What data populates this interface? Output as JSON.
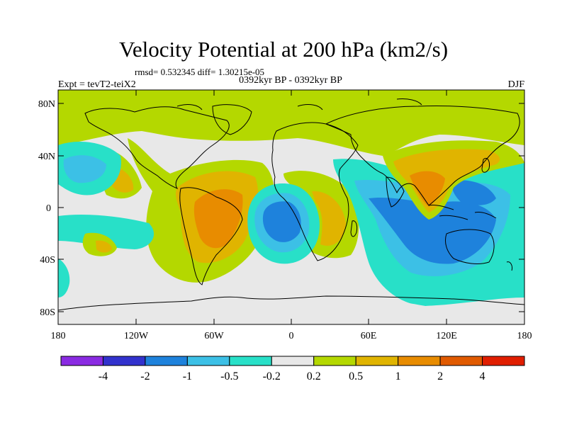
{
  "title": "Velocity Potential at 200 hPa (km2/s)",
  "stats_line": "rmsd= 0.532345  diff= 1.30215e-05",
  "left_label": "Expt = tevT2-teiX2",
  "center_label": "0392kyr BP - 0392kyr BP",
  "right_label": "DJF",
  "lat_ticks": [
    "80N",
    "40N",
    "0",
    "40S",
    "80S"
  ],
  "lon_ticks": [
    "180",
    "120W",
    "60W",
    "0",
    "60E",
    "120E",
    "180"
  ],
  "colorbar": {
    "colors": [
      "#8a2be2",
      "#3232cd",
      "#1e82dc",
      "#3cc0e6",
      "#28e0c8",
      "#e8e8e8",
      "#b4d800",
      "#e0b400",
      "#e88c00",
      "#e05a00",
      "#e01e00"
    ],
    "labels": [
      "-4",
      "-2",
      "-1",
      "-0.5",
      "-0.2",
      "0.2",
      "0.5",
      "1",
      "2",
      "4"
    ]
  }
}
